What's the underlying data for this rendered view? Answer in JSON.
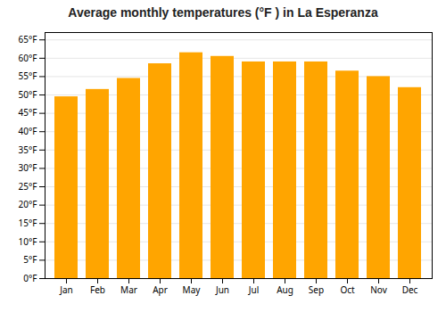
{
  "chart_data": {
    "type": "bar",
    "title": "Average monthly temperatures (°F ) in La Esperanza",
    "categories": [
      "Jan",
      "Feb",
      "Mar",
      "Apr",
      "May",
      "Jun",
      "Jul",
      "Aug",
      "Sep",
      "Oct",
      "Nov",
      "Dec"
    ],
    "values": [
      49.5,
      51.5,
      54.5,
      58.5,
      61.5,
      60.5,
      59.0,
      59.0,
      59.0,
      56.5,
      55.0,
      52.0
    ],
    "color": "#FFA500",
    "ylim": [
      0,
      67
    ],
    "yticks": [
      {
        "value": 0,
        "label": "0°F"
      },
      {
        "value": 5,
        "label": "5°F"
      },
      {
        "value": 10,
        "label": "10°F"
      },
      {
        "value": 15,
        "label": "15°F"
      },
      {
        "value": 20,
        "label": "20°F"
      },
      {
        "value": 25,
        "label": "25°F"
      },
      {
        "value": 30,
        "label": "30°F"
      },
      {
        "value": 35,
        "label": "35°F"
      },
      {
        "value": 40,
        "label": "40°F"
      },
      {
        "value": 45,
        "label": "45°F"
      },
      {
        "value": 50,
        "label": "50°F"
      },
      {
        "value": 55,
        "label": "55°F"
      },
      {
        "value": 60,
        "label": "60°F"
      },
      {
        "value": 65,
        "label": "65°F"
      }
    ],
    "grid": true
  }
}
